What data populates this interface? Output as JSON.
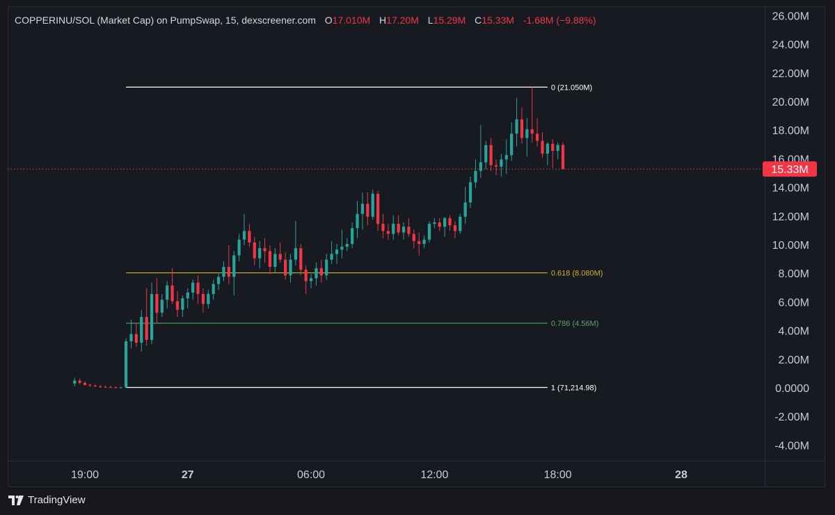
{
  "header": {
    "symbol_line": "COPPERINU/SOL (Market Cap) on PumpSwap, 15, dexscreener.com",
    "open_label": "O",
    "open_value": "17.010M",
    "high_label": "H",
    "high_value": "17.20M",
    "low_label": "L",
    "low_value": "15.29M",
    "close_label": "C",
    "close_value": "15.33M",
    "change": "-1.68M (−9.88%)"
  },
  "colors": {
    "up": "#26a69a",
    "down": "#f23645",
    "text": "#d6d8de",
    "axis_text": "#c9ccd3",
    "fib0": "#ffffff",
    "fib618": "#c9b32a",
    "fib786": "#5aa469",
    "fib1": "#ffffff"
  },
  "footer": {
    "brand": "TradingView",
    "logo_icon": "tradingview-logo-icon"
  },
  "chart_data": {
    "type": "candlestick",
    "y_unit": "M",
    "ylim": [
      -4.6,
      26.8
    ],
    "y_ticks": [
      {
        "v": 26,
        "label": "26.00M"
      },
      {
        "v": 24,
        "label": "24.00M"
      },
      {
        "v": 22,
        "label": "22.00M"
      },
      {
        "v": 20,
        "label": "20.00M"
      },
      {
        "v": 18,
        "label": "18.00M"
      },
      {
        "v": 16,
        "label": "16.00M"
      },
      {
        "v": 14,
        "label": "14.00M"
      },
      {
        "v": 12,
        "label": "12.00M"
      },
      {
        "v": 10,
        "label": "10.00M"
      },
      {
        "v": 8,
        "label": "8.00M"
      },
      {
        "v": 6,
        "label": "6.00M"
      },
      {
        "v": 4,
        "label": "4.00M"
      },
      {
        "v": 2,
        "label": "2.00M"
      },
      {
        "v": 0,
        "label": "0.0000"
      },
      {
        "v": -2,
        "label": "-2.00M"
      },
      {
        "v": -4,
        "label": "-4.00M"
      }
    ],
    "x_ticks": [
      {
        "hour": 19,
        "label": "19:00",
        "bold": false
      },
      {
        "hour": 24,
        "label": "27",
        "bold": true
      },
      {
        "hour": 30,
        "label": "06:00",
        "bold": false
      },
      {
        "hour": 36,
        "label": "12:00",
        "bold": false
      },
      {
        "hour": 42,
        "label": "18:00",
        "bold": false
      },
      {
        "hour": 48,
        "label": "28",
        "bold": true
      }
    ],
    "interval_hours": 0.25,
    "first_candle_hour": 18.5,
    "candles": [
      [
        0.35,
        0.75,
        0.15,
        0.55
      ],
      [
        0.55,
        0.7,
        0.3,
        0.4
      ],
      [
        0.4,
        0.5,
        0.2,
        0.25
      ],
      [
        0.25,
        0.35,
        0.1,
        0.2
      ],
      [
        0.2,
        0.3,
        0.1,
        0.15
      ],
      [
        0.15,
        0.25,
        0.05,
        0.12
      ],
      [
        0.12,
        0.2,
        0.05,
        0.1
      ],
      [
        0.1,
        0.18,
        0.04,
        0.08
      ],
      [
        0.08,
        0.15,
        0.02,
        0.05
      ],
      [
        0.05,
        0.12,
        0.02,
        0.08
      ],
      [
        0.08,
        3.5,
        0.05,
        3.3
      ],
      [
        3.3,
        4.8,
        2.8,
        3.8
      ],
      [
        3.8,
        4.6,
        2.9,
        3.2
      ],
      [
        3.2,
        5.5,
        2.6,
        5.0
      ],
      [
        5.0,
        7.0,
        3.0,
        3.4
      ],
      [
        3.4,
        7.4,
        3.1,
        6.6
      ],
      [
        6.6,
        7.7,
        4.6,
        5.3
      ],
      [
        5.3,
        6.6,
        5.0,
        6.2
      ],
      [
        6.2,
        7.5,
        5.6,
        7.2
      ],
      [
        7.2,
        8.4,
        5.9,
        6.1
      ],
      [
        6.1,
        6.8,
        5.0,
        5.5
      ],
      [
        5.5,
        6.5,
        5.0,
        6.3
      ],
      [
        6.3,
        7.0,
        5.6,
        6.7
      ],
      [
        6.7,
        7.6,
        6.2,
        7.4
      ],
      [
        7.4,
        7.9,
        5.9,
        6.6
      ],
      [
        6.6,
        7.0,
        5.3,
        5.9
      ],
      [
        5.9,
        6.9,
        5.6,
        6.6
      ],
      [
        6.6,
        7.6,
        6.2,
        7.3
      ],
      [
        7.3,
        8.1,
        6.9,
        7.8
      ],
      [
        7.8,
        8.9,
        7.5,
        8.5
      ],
      [
        8.5,
        10.0,
        7.3,
        7.8
      ],
      [
        7.8,
        9.6,
        6.5,
        9.3
      ],
      [
        9.3,
        10.8,
        8.9,
        10.4
      ],
      [
        10.4,
        12.2,
        10.0,
        11.0
      ],
      [
        11.0,
        11.5,
        9.9,
        10.2
      ],
      [
        10.2,
        10.6,
        8.6,
        9.1
      ],
      [
        9.1,
        10.3,
        8.4,
        9.8
      ],
      [
        9.8,
        10.5,
        8.8,
        9.6
      ],
      [
        9.6,
        10.0,
        8.0,
        8.5
      ],
      [
        8.5,
        9.8,
        8.1,
        9.4
      ],
      [
        9.4,
        10.2,
        8.8,
        9.0
      ],
      [
        9.0,
        9.5,
        7.6,
        7.9
      ],
      [
        7.9,
        9.4,
        7.4,
        9.0
      ],
      [
        9.0,
        11.7,
        8.6,
        9.8
      ],
      [
        9.8,
        10.1,
        7.9,
        8.3
      ],
      [
        8.3,
        8.6,
        6.6,
        7.5
      ],
      [
        7.5,
        8.0,
        7.0,
        7.7
      ],
      [
        7.7,
        8.8,
        7.2,
        8.4
      ],
      [
        8.4,
        9.0,
        7.4,
        7.9
      ],
      [
        7.9,
        9.4,
        7.6,
        9.0
      ],
      [
        9.0,
        10.3,
        8.7,
        9.4
      ],
      [
        9.4,
        10.1,
        8.7,
        9.7
      ],
      [
        9.7,
        11.1,
        9.1,
        9.9
      ],
      [
        9.9,
        10.5,
        9.6,
        10.1
      ],
      [
        10.1,
        11.6,
        9.8,
        11.2
      ],
      [
        11.2,
        13.1,
        10.5,
        12.2
      ],
      [
        12.2,
        13.7,
        11.1,
        12.9
      ],
      [
        12.9,
        13.7,
        11.4,
        12.0
      ],
      [
        12.0,
        13.9,
        11.8,
        13.6
      ],
      [
        13.6,
        13.8,
        11.0,
        11.5
      ],
      [
        11.5,
        12.2,
        10.5,
        11.0
      ],
      [
        11.0,
        11.5,
        10.4,
        10.8
      ],
      [
        10.8,
        12.1,
        10.4,
        11.5
      ],
      [
        11.5,
        12.1,
        10.7,
        10.9
      ],
      [
        10.9,
        11.6,
        10.4,
        11.3
      ],
      [
        11.3,
        11.9,
        10.6,
        10.8
      ],
      [
        10.8,
        11.1,
        9.8,
        10.3
      ],
      [
        10.3,
        10.9,
        9.3,
        10.1
      ],
      [
        10.1,
        10.7,
        9.8,
        10.4
      ],
      [
        10.4,
        11.7,
        10.2,
        11.5
      ],
      [
        11.5,
        11.9,
        11.2,
        11.6
      ],
      [
        11.6,
        11.9,
        11.0,
        11.3
      ],
      [
        11.3,
        12.0,
        10.6,
        11.9
      ],
      [
        11.9,
        12.1,
        11.0,
        11.4
      ],
      [
        11.4,
        11.7,
        10.5,
        11.0
      ],
      [
        11.0,
        12.2,
        10.8,
        12.0
      ],
      [
        12.0,
        14.1,
        11.5,
        13.0
      ],
      [
        13.0,
        14.8,
        12.6,
        14.4
      ],
      [
        14.4,
        16.0,
        14.0,
        15.2
      ],
      [
        15.2,
        18.4,
        14.7,
        15.8
      ],
      [
        15.8,
        17.3,
        15.3,
        17.0
      ],
      [
        17.0,
        17.5,
        15.2,
        15.6
      ],
      [
        15.6,
        16.0,
        14.9,
        15.5
      ],
      [
        15.5,
        16.4,
        14.8,
        16.0
      ],
      [
        16.0,
        17.4,
        15.0,
        16.3
      ],
      [
        16.3,
        18.6,
        15.9,
        17.8
      ],
      [
        17.8,
        20.3,
        16.9,
        18.8
      ],
      [
        18.8,
        19.6,
        17.1,
        17.5
      ],
      [
        17.5,
        18.9,
        16.2,
        18.1
      ],
      [
        18.1,
        21.05,
        17.2,
        17.8
      ],
      [
        17.8,
        18.9,
        16.9,
        17.3
      ],
      [
        17.3,
        17.9,
        16.1,
        16.4
      ],
      [
        16.4,
        17.2,
        15.6,
        17.1
      ],
      [
        17.1,
        17.4,
        15.4,
        16.6
      ],
      [
        16.6,
        17.2,
        16.0,
        17.01
      ],
      [
        17.01,
        17.2,
        15.29,
        15.33
      ]
    ],
    "fib_levels": [
      {
        "value": 21.05,
        "label": "0 (21.050M)",
        "color_key": "fib0"
      },
      {
        "value": 8.08,
        "label": "0.618 (8.080M)",
        "color_key": "fib618"
      },
      {
        "value": 4.56,
        "label": "0.786 (4.56M)",
        "color_key": "fib786"
      },
      {
        "value": 0.071,
        "label": "1 (71,214.98)",
        "color_key": "fib1"
      }
    ],
    "fib_start_hour": 21.0,
    "fib_end_hour": 41.5,
    "current_price": {
      "value": 15.33,
      "label": "15.33M"
    }
  }
}
